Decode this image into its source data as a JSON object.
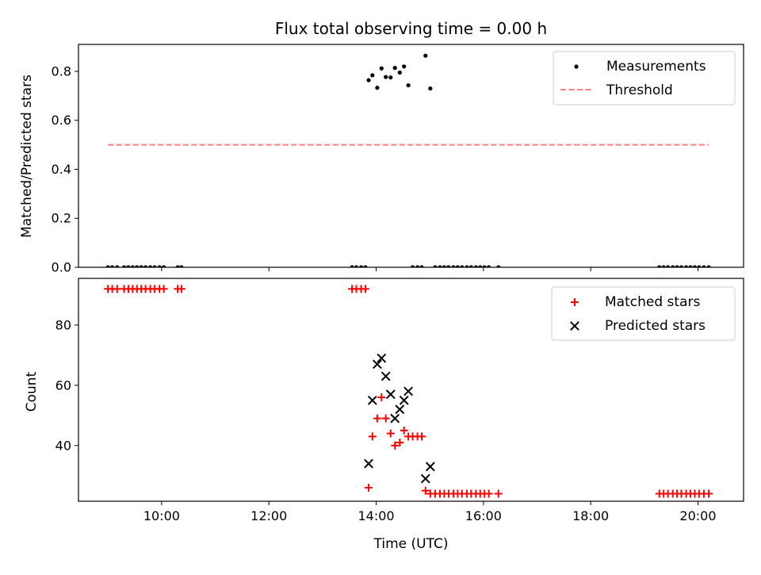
{
  "chart_data": [
    {
      "type": "scatter",
      "title": "Flux total observing time = 0.00 h",
      "xlabel": "",
      "ylabel": "Matched/Predicted stars",
      "xlim": [
        8.45,
        20.85
      ],
      "ylim": [
        0.0,
        0.91
      ],
      "yticks": [
        {
          "value": 0.0,
          "label": "0.0"
        },
        {
          "value": 0.2,
          "label": "0.2"
        },
        {
          "value": 0.4,
          "label": "0.4"
        },
        {
          "value": 0.6,
          "label": "0.6"
        },
        {
          "value": 0.8,
          "label": "0.8"
        }
      ],
      "xticks": [
        {
          "value": 10,
          "label": ""
        },
        {
          "value": 12,
          "label": ""
        },
        {
          "value": 14,
          "label": ""
        },
        {
          "value": 16,
          "label": ""
        },
        {
          "value": 18,
          "label": ""
        },
        {
          "value": 20,
          "label": ""
        }
      ],
      "legend_position": "top-right",
      "series": [
        {
          "name": "Measurements",
          "marker": "dot",
          "color": "#000000",
          "points": [
            [
              9.0,
              0
            ],
            [
              9.08,
              0
            ],
            [
              9.17,
              0
            ],
            [
              9.3,
              0
            ],
            [
              9.38,
              0
            ],
            [
              9.46,
              0
            ],
            [
              9.54,
              0
            ],
            [
              9.62,
              0
            ],
            [
              9.7,
              0
            ],
            [
              9.79,
              0
            ],
            [
              9.87,
              0
            ],
            [
              9.96,
              0
            ],
            [
              10.04,
              0
            ],
            [
              10.3,
              0
            ],
            [
              10.37,
              0
            ],
            [
              13.55,
              0
            ],
            [
              13.63,
              0
            ],
            [
              13.72,
              0
            ],
            [
              13.8,
              0
            ],
            [
              13.86,
              0.764
            ],
            [
              13.93,
              0.784
            ],
            [
              14.02,
              0.733
            ],
            [
              14.1,
              0.812
            ],
            [
              14.18,
              0.777
            ],
            [
              14.27,
              0.775
            ],
            [
              14.35,
              0.814
            ],
            [
              14.44,
              0.795
            ],
            [
              14.52,
              0.82
            ],
            [
              14.6,
              0.743
            ],
            [
              14.92,
              0.864
            ],
            [
              15.01,
              0.73
            ],
            [
              14.68,
              0
            ],
            [
              14.77,
              0
            ],
            [
              14.85,
              0
            ],
            [
              15.1,
              0
            ],
            [
              15.19,
              0
            ],
            [
              15.27,
              0
            ],
            [
              15.35,
              0
            ],
            [
              15.44,
              0
            ],
            [
              15.52,
              0
            ],
            [
              15.6,
              0
            ],
            [
              15.69,
              0
            ],
            [
              15.77,
              0
            ],
            [
              15.86,
              0
            ],
            [
              15.94,
              0
            ],
            [
              16.02,
              0
            ],
            [
              16.1,
              0
            ],
            [
              16.28,
              0
            ],
            [
              19.28,
              0
            ],
            [
              19.36,
              0
            ],
            [
              19.44,
              0
            ],
            [
              19.53,
              0
            ],
            [
              19.61,
              0
            ],
            [
              19.69,
              0
            ],
            [
              19.78,
              0
            ],
            [
              19.86,
              0
            ],
            [
              19.94,
              0
            ],
            [
              20.02,
              0
            ],
            [
              20.11,
              0
            ],
            [
              20.2,
              0
            ]
          ]
        },
        {
          "name": "Threshold",
          "marker": "dashed-line",
          "color": "#ff7f7f",
          "x": [
            9.0,
            20.2
          ],
          "y": [
            0.5,
            0.5
          ]
        }
      ]
    },
    {
      "type": "scatter",
      "title": "",
      "xlabel": "Time (UTC)",
      "ylabel": "Count",
      "xlim": [
        8.45,
        20.85
      ],
      "ylim": [
        21.5,
        95.5
      ],
      "yticks": [
        {
          "value": 40,
          "label": "40"
        },
        {
          "value": 60,
          "label": "60"
        },
        {
          "value": 80,
          "label": "80"
        }
      ],
      "xticks": [
        {
          "value": 10,
          "label": "10:00"
        },
        {
          "value": 12,
          "label": "12:00"
        },
        {
          "value": 14,
          "label": "14:00"
        },
        {
          "value": 16,
          "label": "16:00"
        },
        {
          "value": 18,
          "label": "18:00"
        },
        {
          "value": 20,
          "label": "20:00"
        }
      ],
      "legend_position": "top-right",
      "series": [
        {
          "name": "Matched stars",
          "marker": "plus",
          "color": "#ff0000",
          "points": [
            [
              9.0,
              92
            ],
            [
              9.08,
              92
            ],
            [
              9.17,
              92
            ],
            [
              9.3,
              92
            ],
            [
              9.38,
              92
            ],
            [
              9.46,
              92
            ],
            [
              9.54,
              92
            ],
            [
              9.62,
              92
            ],
            [
              9.7,
              92
            ],
            [
              9.79,
              92
            ],
            [
              9.87,
              92
            ],
            [
              9.96,
              92
            ],
            [
              10.04,
              92
            ],
            [
              10.3,
              92
            ],
            [
              10.37,
              92
            ],
            [
              13.55,
              92
            ],
            [
              13.63,
              92
            ],
            [
              13.72,
              92
            ],
            [
              13.8,
              92
            ],
            [
              13.86,
              26
            ],
            [
              13.93,
              43
            ],
            [
              14.02,
              49
            ],
            [
              14.1,
              56
            ],
            [
              14.18,
              49
            ],
            [
              14.27,
              44
            ],
            [
              14.35,
              40
            ],
            [
              14.44,
              41
            ],
            [
              14.52,
              45
            ],
            [
              14.6,
              43
            ],
            [
              14.68,
              43
            ],
            [
              14.77,
              43
            ],
            [
              14.85,
              43
            ],
            [
              14.92,
              25
            ],
            [
              15.01,
              24
            ],
            [
              15.1,
              24
            ],
            [
              15.19,
              24
            ],
            [
              15.27,
              24
            ],
            [
              15.35,
              24
            ],
            [
              15.44,
              24
            ],
            [
              15.52,
              24
            ],
            [
              15.6,
              24
            ],
            [
              15.69,
              24
            ],
            [
              15.77,
              24
            ],
            [
              15.86,
              24
            ],
            [
              15.94,
              24
            ],
            [
              16.02,
              24
            ],
            [
              16.1,
              24
            ],
            [
              16.28,
              24
            ],
            [
              19.28,
              24
            ],
            [
              19.36,
              24
            ],
            [
              19.44,
              24
            ],
            [
              19.53,
              24
            ],
            [
              19.61,
              24
            ],
            [
              19.69,
              24
            ],
            [
              19.78,
              24
            ],
            [
              19.86,
              24
            ],
            [
              19.94,
              24
            ],
            [
              20.02,
              24
            ],
            [
              20.11,
              24
            ],
            [
              20.2,
              24
            ]
          ]
        },
        {
          "name": "Predicted stars",
          "marker": "x",
          "color": "#000000",
          "points": [
            [
              13.86,
              34
            ],
            [
              13.93,
              55
            ],
            [
              14.02,
              67
            ],
            [
              14.1,
              69
            ],
            [
              14.18,
              63
            ],
            [
              14.27,
              57
            ],
            [
              14.35,
              49
            ],
            [
              14.44,
              52
            ],
            [
              14.52,
              55
            ],
            [
              14.6,
              58
            ],
            [
              14.92,
              29
            ],
            [
              15.01,
              33
            ]
          ]
        }
      ]
    }
  ]
}
